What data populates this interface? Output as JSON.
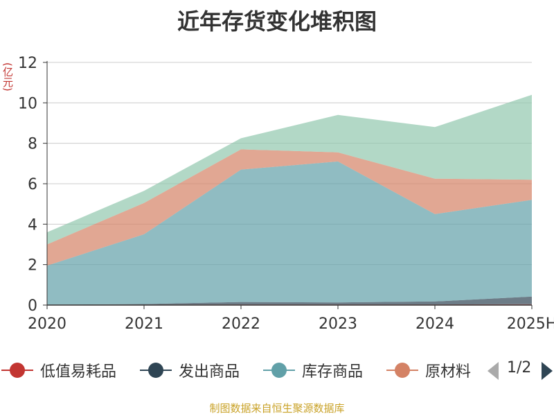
{
  "chart_data": {
    "type": "area",
    "title": "近年存货变化堆积图",
    "unit": "(亿元)",
    "stacked": true,
    "categories": [
      "2020",
      "2021",
      "2022",
      "2023",
      "2024",
      "2025H"
    ],
    "ylim": [
      0,
      12
    ],
    "yticks": [
      0,
      2,
      4,
      6,
      8,
      10,
      12
    ],
    "grid": true,
    "legend_position": "bottom",
    "series": [
      {
        "name": "低值易耗品",
        "color": "#c23531",
        "values": [
          0.02,
          0.02,
          0.03,
          0.03,
          0.03,
          0.04
        ]
      },
      {
        "name": "发出商品",
        "color": "#2f4554",
        "values": [
          0.0,
          0.03,
          0.12,
          0.1,
          0.15,
          0.38
        ]
      },
      {
        "name": "库存商品",
        "color": "#61a0a8",
        "values": [
          1.93,
          3.45,
          6.55,
          6.97,
          4.32,
          4.78
        ]
      },
      {
        "name": "原材料",
        "color": "#d48265",
        "values": [
          1.05,
          1.55,
          1.0,
          0.45,
          1.75,
          1.0
        ]
      },
      {
        "name": "",
        "color": "#91c7ae",
        "values": [
          0.6,
          0.6,
          0.55,
          1.85,
          2.55,
          4.2
        ]
      }
    ]
  },
  "legend": {
    "items": [
      {
        "label": "低值易耗品",
        "color": "#c23531"
      },
      {
        "label": "发出商品",
        "color": "#2f4554"
      },
      {
        "label": "库存商品",
        "color": "#61a0a8"
      },
      {
        "label": "原材料",
        "color": "#d48265"
      }
    ],
    "page_indicator": "1/2"
  },
  "footer": {
    "source": "制图数据来自恒生聚源数据库"
  }
}
